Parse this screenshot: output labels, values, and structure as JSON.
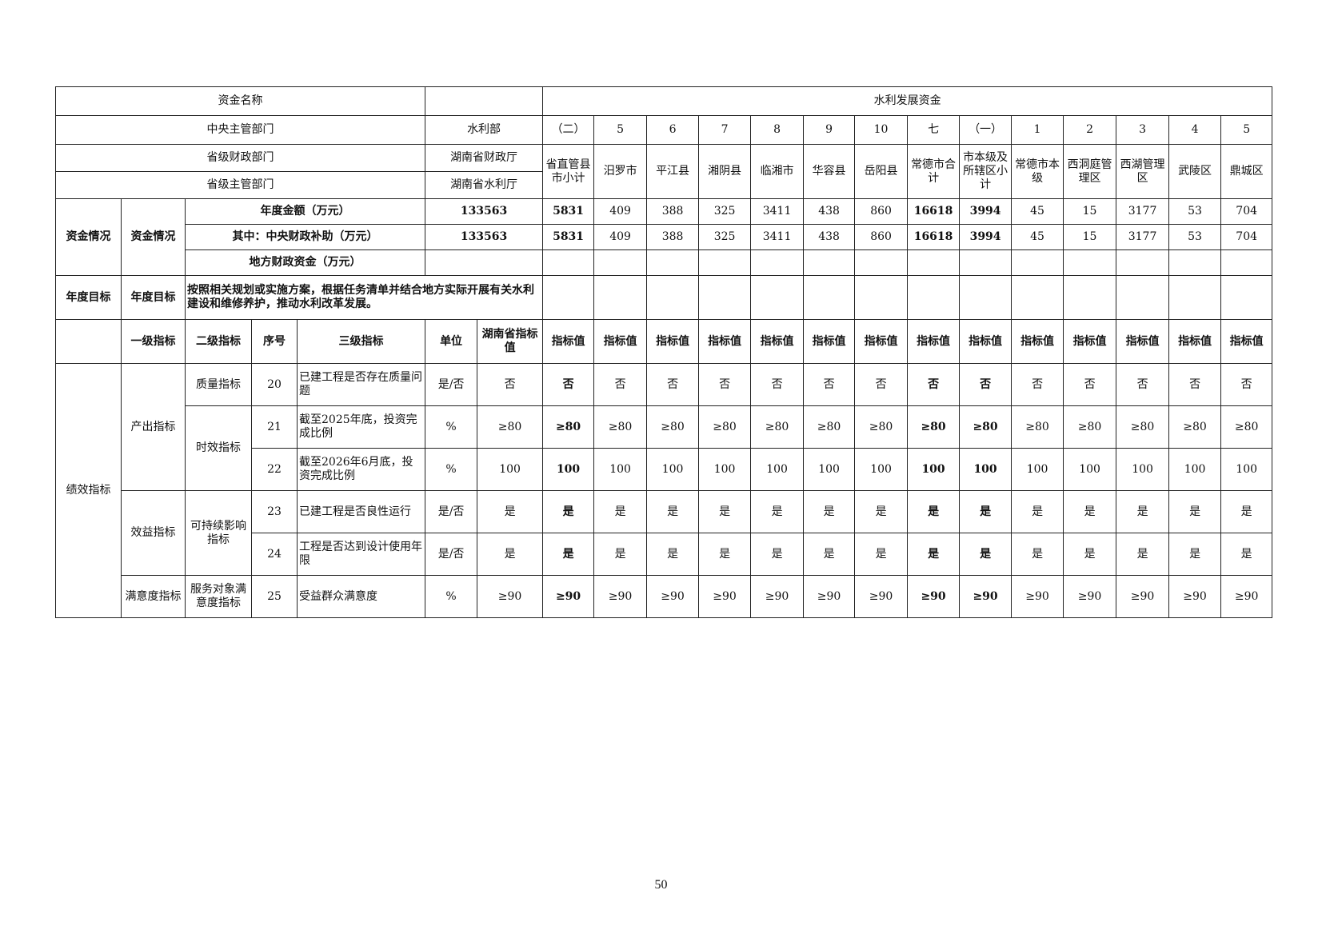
{
  "header": {
    "fund_name_label": "资金名称",
    "fund_name_value": "水利发展资金",
    "central_dept_label": "中央主管部门",
    "central_dept_value": "水利部",
    "prov_finance_label": "省级财政部门",
    "prov_finance_value": "湖南省财政厅",
    "prov_dept_label": "省级主管部门",
    "prov_dept_value": "湖南省水利厅"
  },
  "funding": {
    "group_label": "资金情况",
    "sub_label": "资金情况",
    "annual_label": "年度金额（万元）",
    "annual_total": "133563",
    "central_label": "其中：中央财政补助（万元）",
    "central_total": "133563",
    "local_label": "地方财政资金（万元）"
  },
  "goal": {
    "group_label": "年度目标",
    "sub_label": "年度目标",
    "text": "按照相关规划或实施方案，根据任务清单并结合地方实际开展有关水利建设和维修养护，推动水利改革发展。"
  },
  "columns": [
    {
      "no": "（二）",
      "name": "省直管县市小计",
      "amount": "5831",
      "central": "5831",
      "bold": true
    },
    {
      "no": "5",
      "name": "汨罗市",
      "amount": "409",
      "central": "409",
      "bold": false
    },
    {
      "no": "6",
      "name": "平江县",
      "amount": "388",
      "central": "388",
      "bold": false
    },
    {
      "no": "7",
      "name": "湘阴县",
      "amount": "325",
      "central": "325",
      "bold": false
    },
    {
      "no": "8",
      "name": "临湘市",
      "amount": "3411",
      "central": "3411",
      "bold": false
    },
    {
      "no": "9",
      "name": "华容县",
      "amount": "438",
      "central": "438",
      "bold": false
    },
    {
      "no": "10",
      "name": "岳阳县",
      "amount": "860",
      "central": "860",
      "bold": false
    },
    {
      "no": "七",
      "name": "常德市合计",
      "amount": "16618",
      "central": "16618",
      "bold": true
    },
    {
      "no": "（一）",
      "name": "市本级及所辖区小计",
      "amount": "3994",
      "central": "3994",
      "bold": true
    },
    {
      "no": "1",
      "name": "常德市本级",
      "amount": "45",
      "central": "45",
      "bold": false
    },
    {
      "no": "2",
      "name": "西洞庭管理区",
      "amount": "15",
      "central": "15",
      "bold": false
    },
    {
      "no": "3",
      "name": "西湖管理区",
      "amount": "3177",
      "central": "3177",
      "bold": false
    },
    {
      "no": "4",
      "name": "武陵区",
      "amount": "53",
      "central": "53",
      "bold": false
    },
    {
      "no": "5",
      "name": "鼎城区",
      "amount": "704",
      "central": "704",
      "bold": false
    }
  ],
  "indicator_header": {
    "level1": "一级指标",
    "level2": "二级指标",
    "seq": "序号",
    "level3": "三级指标",
    "unit": "单位",
    "province_value": "湖南省指标值",
    "column_value": "指标值"
  },
  "performance_label": "绩效指标",
  "groups": {
    "output": "产出指标",
    "benefit": "效益指标",
    "satisfaction": "满意度指标",
    "quality": "质量指标",
    "timeliness": "时效指标",
    "sustainable": "可持续影响指标",
    "service": "服务对象满意度指标"
  },
  "indicators": [
    {
      "seq": "20",
      "name": "已建工程是否存在质量问题",
      "unit": "是/否",
      "province": "否",
      "values": [
        "否",
        "否",
        "否",
        "否",
        "否",
        "否",
        "否",
        "否",
        "否",
        "否",
        "否",
        "否",
        "否",
        "否"
      ]
    },
    {
      "seq": "21",
      "name": "截至2025年底，投资完成比例",
      "unit": "%",
      "province": "≥80",
      "values": [
        "≥80",
        "≥80",
        "≥80",
        "≥80",
        "≥80",
        "≥80",
        "≥80",
        "≥80",
        "≥80",
        "≥80",
        "≥80",
        "≥80",
        "≥80",
        "≥80"
      ]
    },
    {
      "seq": "22",
      "name": "截至2026年6月底，投资完成比例",
      "unit": "%",
      "province": "100",
      "values": [
        "100",
        "100",
        "100",
        "100",
        "100",
        "100",
        "100",
        "100",
        "100",
        "100",
        "100",
        "100",
        "100",
        "100"
      ]
    },
    {
      "seq": "23",
      "name": "已建工程是否良性运行",
      "unit": "是/否",
      "province": "是",
      "values": [
        "是",
        "是",
        "是",
        "是",
        "是",
        "是",
        "是",
        "是",
        "是",
        "是",
        "是",
        "是",
        "是",
        "是"
      ]
    },
    {
      "seq": "24",
      "name": "工程是否达到设计使用年限",
      "unit": "是/否",
      "province": "是",
      "values": [
        "是",
        "是",
        "是",
        "是",
        "是",
        "是",
        "是",
        "是",
        "是",
        "是",
        "是",
        "是",
        "是",
        "是"
      ]
    },
    {
      "seq": "25",
      "name": "受益群众满意度",
      "unit": "%",
      "province": "≥90",
      "values": [
        "≥90",
        "≥90",
        "≥90",
        "≥90",
        "≥90",
        "≥90",
        "≥90",
        "≥90",
        "≥90",
        "≥90",
        "≥90",
        "≥90",
        "≥90",
        "≥90"
      ]
    }
  ],
  "page_number": "50"
}
